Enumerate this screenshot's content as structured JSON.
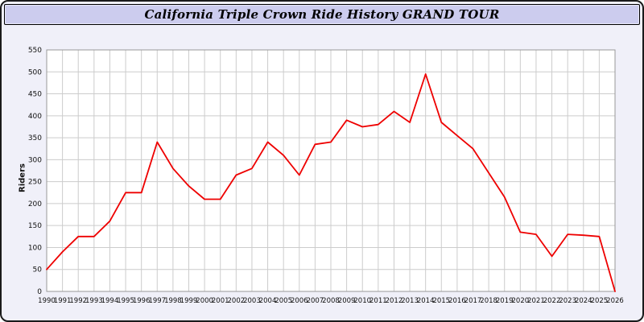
{
  "window": {
    "title": "California Triple Crown Ride History GRAND TOUR"
  },
  "chart_data": {
    "type": "line",
    "title": "California Triple Crown Ride History GRAND TOUR",
    "xlabel": "",
    "ylabel": "Riders",
    "ylim": [
      0,
      550
    ],
    "ytick_step": 50,
    "grid": true,
    "legend": "none",
    "line_color": "#ee0000",
    "x": [
      1990,
      1991,
      1992,
      1993,
      1994,
      1995,
      1996,
      1997,
      1998,
      1999,
      2000,
      2001,
      2002,
      2003,
      2004,
      2005,
      2006,
      2007,
      2008,
      2009,
      2010,
      2011,
      2012,
      2013,
      2014,
      2015,
      2016,
      2017,
      2018,
      2019,
      2020,
      2021,
      2022,
      2023,
      2024,
      2025,
      2026
    ],
    "values": [
      50,
      90,
      125,
      125,
      160,
      225,
      225,
      340,
      280,
      240,
      210,
      210,
      265,
      280,
      340,
      310,
      265,
      335,
      340,
      390,
      375,
      380,
      410,
      385,
      495,
      385,
      355,
      325,
      270,
      215,
      135,
      130,
      80,
      130,
      128,
      125,
      0
    ]
  }
}
